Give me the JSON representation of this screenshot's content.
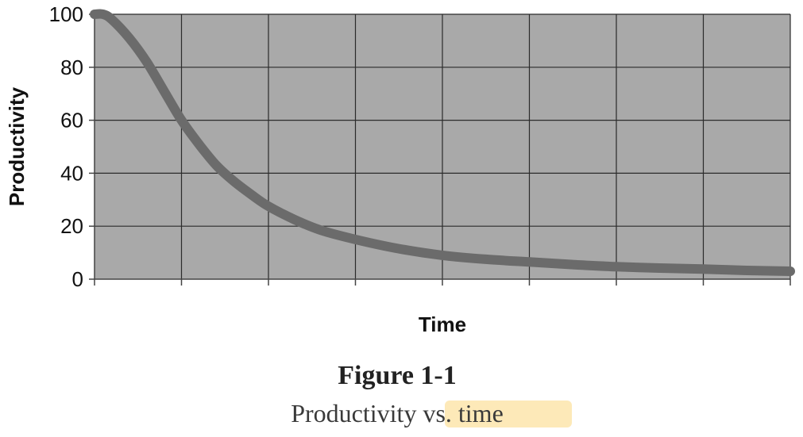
{
  "chart_data": {
    "type": "line",
    "title": "",
    "xlabel": "Time",
    "ylabel": "Productivity",
    "ylim": [
      0,
      100
    ],
    "xlim": [
      0,
      8
    ],
    "y_ticks": [
      "100",
      "80",
      "60",
      "40",
      "20",
      "0"
    ],
    "x_tick_labels_shown": false,
    "grid": true,
    "legend": "none",
    "series": [
      {
        "x": [
          0,
          0.1,
          0.2,
          0.4,
          0.6,
          0.8,
          1.0,
          1.2,
          1.4,
          1.6,
          1.8,
          2.0,
          2.3,
          2.6,
          3.0,
          3.5,
          4.0,
          4.5,
          5.0,
          5.5,
          6.0,
          6.5,
          7.0,
          7.5,
          8.0
        ],
        "y": [
          100,
          100,
          98,
          91,
          82,
          71,
          60,
          51,
          43,
          37,
          32,
          27.5,
          22.5,
          18.5,
          15,
          11.5,
          9,
          7.5,
          6.5,
          5.5,
          4.7,
          4.2,
          3.8,
          3.3,
          3
        ]
      }
    ]
  },
  "caption": {
    "label": "Figure 1-1",
    "text": "Productivity vs. time"
  },
  "colors": {
    "plot_background": "#a9a9a9",
    "grid": "#2b2b2b",
    "line": "#6b6b6b",
    "highlight": "#fde9b8"
  }
}
